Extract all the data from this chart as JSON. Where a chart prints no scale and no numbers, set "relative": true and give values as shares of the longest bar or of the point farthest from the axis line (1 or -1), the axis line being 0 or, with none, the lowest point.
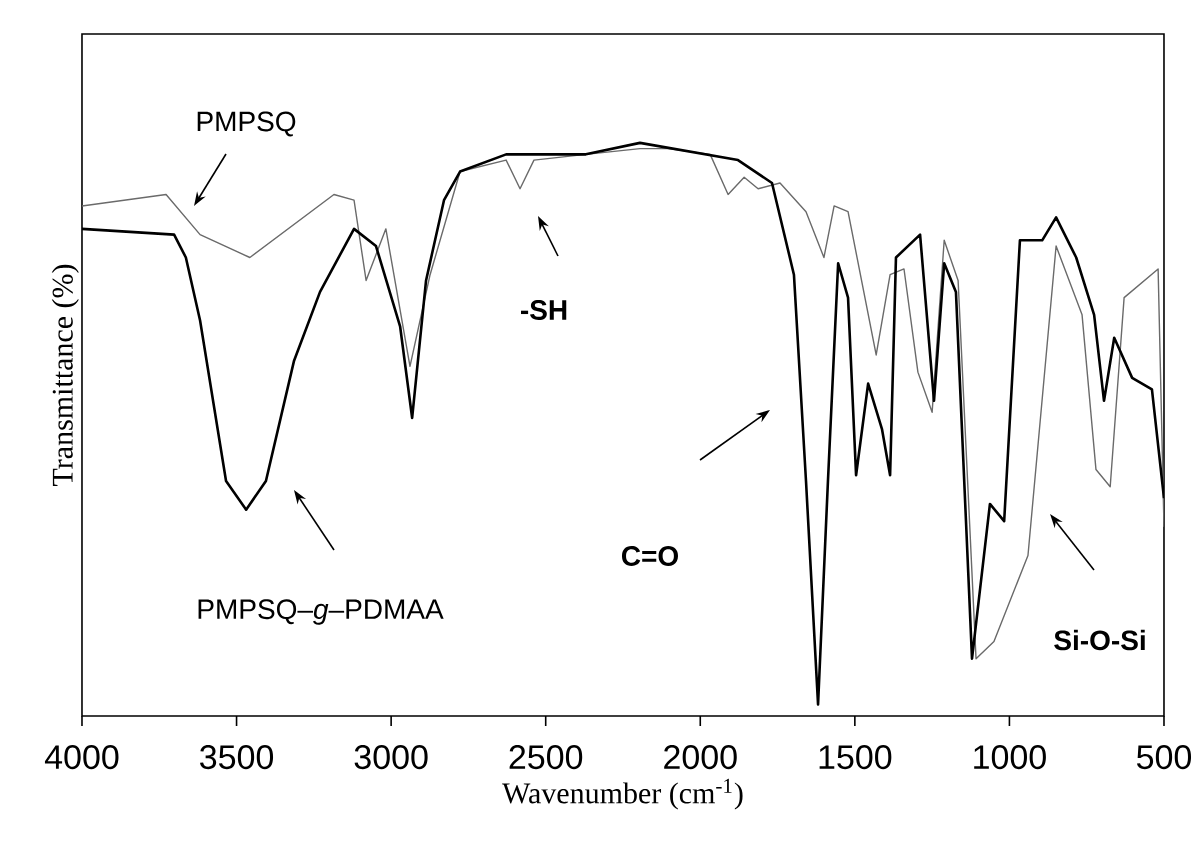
{
  "chart_data": {
    "type": "line",
    "relative": true,
    "xlabel": "Wavenumber (cm$^{-1}$)",
    "ylabel": "Transmittance (%)",
    "xlim": [
      4000,
      500
    ],
    "xticks": [
      4000,
      3500,
      3000,
      2500,
      2000,
      1500,
      1000,
      500
    ],
    "tick_labels": "x",
    "grid": false,
    "marker": "none",
    "line_style": "solid",
    "series": [
      {
        "color": "#6a6a6a",
        "x": [
          4000,
          3728,
          3618,
          3457,
          3185,
          3120,
          3081,
          3017,
          2939,
          2874,
          2777,
          2628,
          2583,
          2538,
          2370,
          2195,
          2104,
          1968,
          1910,
          1858,
          1813,
          1742,
          1658,
          1600,
          1567,
          1522,
          1431,
          1386,
          1341,
          1296,
          1250,
          1211,
          1166,
          1108,
          1050,
          940,
          849,
          765,
          720,
          674,
          629,
          519,
          500
        ],
        "values": [
          0.89,
          0.91,
          0.84,
          0.8,
          0.91,
          0.9,
          0.76,
          0.85,
          0.61,
          0.77,
          0.95,
          0.97,
          0.92,
          0.97,
          0.98,
          0.99,
          0.99,
          0.98,
          0.91,
          0.94,
          0.92,
          0.93,
          0.88,
          0.8,
          0.89,
          0.88,
          0.63,
          0.77,
          0.78,
          0.6,
          0.53,
          0.83,
          0.76,
          0.1,
          0.13,
          0.28,
          0.82,
          0.7,
          0.43,
          0.4,
          0.73,
          0.78,
          0.33
        ]
      },
      {
        "color": "#000000",
        "x": [
          4000,
          3702,
          3664,
          3618,
          3534,
          3469,
          3405,
          3314,
          3230,
          3120,
          3049,
          2971,
          2932,
          2887,
          2829,
          2777,
          2628,
          2370,
          2195,
          1878,
          1768,
          1697,
          1658,
          1619,
          1587,
          1554,
          1522,
          1496,
          1457,
          1412,
          1386,
          1367,
          1289,
          1244,
          1211,
          1173,
          1121,
          1063,
          1017,
          966,
          894,
          849,
          784,
          726,
          694,
          661,
          603,
          539,
          500
        ],
        "values": [
          0.85,
          0.84,
          0.8,
          0.69,
          0.41,
          0.36,
          0.41,
          0.62,
          0.74,
          0.85,
          0.82,
          0.68,
          0.52,
          0.76,
          0.9,
          0.95,
          0.98,
          0.98,
          1.0,
          0.97,
          0.93,
          0.77,
          0.41,
          0.02,
          0.41,
          0.79,
          0.73,
          0.42,
          0.58,
          0.5,
          0.42,
          0.8,
          0.84,
          0.55,
          0.79,
          0.74,
          0.1,
          0.37,
          0.34,
          0.83,
          0.83,
          0.87,
          0.8,
          0.7,
          0.55,
          0.66,
          0.59,
          0.57,
          0.38
        ]
      }
    ],
    "annotations": [
      "PMPSQ",
      "-SH",
      "PMPSQ–*g*–PDMAA",
      "C=O",
      "Si-O-Si"
    ]
  }
}
